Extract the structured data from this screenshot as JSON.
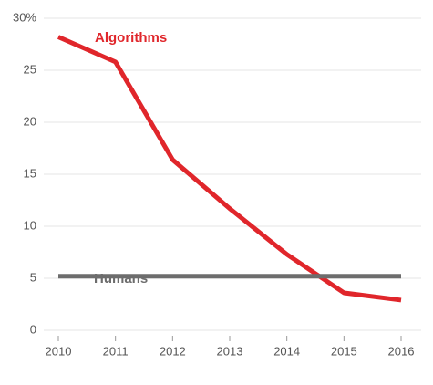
{
  "chart_data": {
    "type": "line",
    "x": [
      2010,
      2011,
      2012,
      2013,
      2014,
      2015,
      2016
    ],
    "xlim": [
      2010,
      2016
    ],
    "series": [
      {
        "name": "Algorithms",
        "color": "#e0262b",
        "values": [
          28.2,
          25.8,
          16.4,
          11.7,
          7.3,
          3.6,
          2.9
        ]
      },
      {
        "name": "Humans",
        "color": "#6d6d6d",
        "values": [
          5.2,
          5.2,
          5.2,
          5.2,
          5.2,
          5.2,
          5.2
        ]
      }
    ],
    "ylim": [
      0,
      30
    ],
    "yticks": [
      0,
      5,
      10,
      15,
      20,
      25,
      {
        "value": 30,
        "label": "30%"
      }
    ],
    "grid": true
  }
}
